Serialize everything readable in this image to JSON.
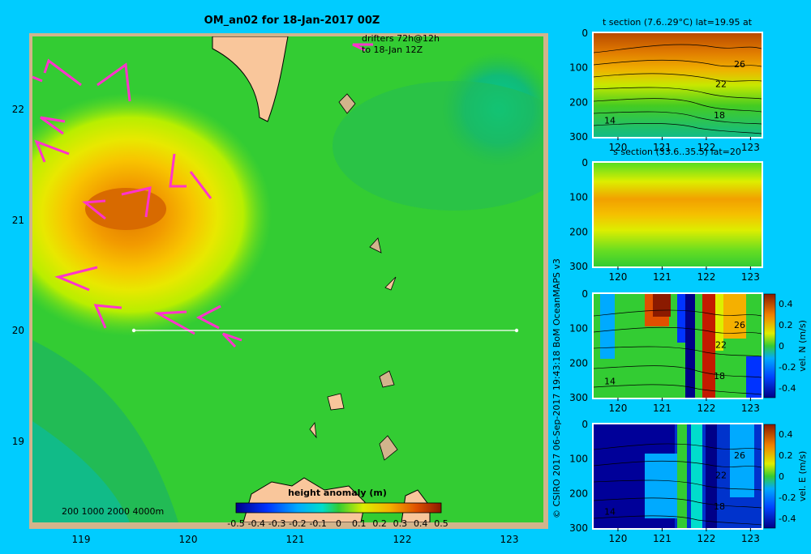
{
  "main_title": "OM_an02 for 18-Jan-2017 00Z",
  "drifters": {
    "line1": "drifters 72h@12h",
    "line2": "to 18-Jan 12Z"
  },
  "map": {
    "lon_ticks": [
      "119",
      "120",
      "121",
      "122",
      "123"
    ],
    "lat_ticks": [
      "22",
      "21",
      "20",
      "19"
    ],
    "depth_legend": "200  1000  2000  4000m",
    "colorbar_title": "height anomaly (m)",
    "colorbar_ticks": [
      "-0.5",
      "-0.4",
      "-0.3",
      "-0.2",
      "-0.1",
      "0",
      "0.1",
      "0.2",
      "0.3",
      "0.4",
      "0.5"
    ],
    "colors": {
      "land": "#f9c69b",
      "shelf": "#d2b48c",
      "sea_base": "#33cc33"
    }
  },
  "credit": "© CSIRO 2017   06-Sep-2017 19:43:18 BoM OceanMAPS v3",
  "sections": [
    {
      "title": "t section (7.6..29°C) lat=19.95 at",
      "x_ticks": [
        "120",
        "121",
        "122",
        "123"
      ],
      "y_ticks": [
        "0",
        "100",
        "200",
        "300"
      ],
      "contour_labels": [
        "26",
        "22",
        "18",
        "14"
      ]
    },
    {
      "title": "s section (33.6..35.5) lat=20",
      "x_ticks": [
        "120",
        "121",
        "122",
        "123"
      ],
      "y_ticks": [
        "0",
        "100",
        "200",
        "300"
      ],
      "contour_labels": []
    },
    {
      "title": "",
      "x_ticks": [
        "120",
        "121",
        "122",
        "123"
      ],
      "y_ticks": [
        "0",
        "100",
        "200",
        "300"
      ],
      "contour_labels": [
        "26",
        "22",
        "18",
        "14"
      ],
      "cbar_label": "vel. N (m/s)",
      "cbar_ticks": [
        "0.4",
        "0.2",
        "0",
        "-0.2",
        "-0.4"
      ]
    },
    {
      "title": "",
      "x_ticks": [
        "120",
        "121",
        "122",
        "123"
      ],
      "y_ticks": [
        "0",
        "100",
        "200",
        "300"
      ],
      "contour_labels": [
        "26",
        "22",
        "18",
        "14"
      ],
      "cbar_label": "vel. E (m/s)",
      "cbar_ticks": [
        "0.4",
        "0.2",
        "0",
        "-0.2",
        "-0.4"
      ]
    }
  ],
  "chart_data": [
    {
      "type": "heatmap",
      "title": "OM_an02 for 18-Jan-2017 00Z",
      "quantity": "height anomaly (m)",
      "x_ticks": [
        119,
        120,
        121,
        122,
        123
      ],
      "y_ticks": [
        22,
        21,
        20,
        19
      ],
      "value_range": [
        -0.5,
        0.5
      ]
    },
    {
      "type": "heatmap",
      "title": "t section (7.6..29°C) lat=19.95 at",
      "x_range": [
        119.5,
        123.2
      ],
      "y_range": [
        0,
        300
      ],
      "contour_labels": [
        26,
        22,
        18,
        14
      ]
    },
    {
      "type": "heatmap",
      "title": "s section (33.6..35.5) lat=20",
      "x_range": [
        119.5,
        123.2
      ],
      "y_range": [
        0,
        300
      ]
    },
    {
      "type": "heatmap",
      "quantity": "vel. N (m/s)",
      "value_range": [
        -0.4,
        0.4
      ],
      "x_range": [
        119.5,
        123.2
      ],
      "y_range": [
        0,
        300
      ]
    },
    {
      "type": "heatmap",
      "quantity": "vel. E (m/s)",
      "value_range": [
        -0.4,
        0.4
      ],
      "x_range": [
        119.5,
        123.2
      ],
      "y_range": [
        0,
        300
      ]
    }
  ]
}
